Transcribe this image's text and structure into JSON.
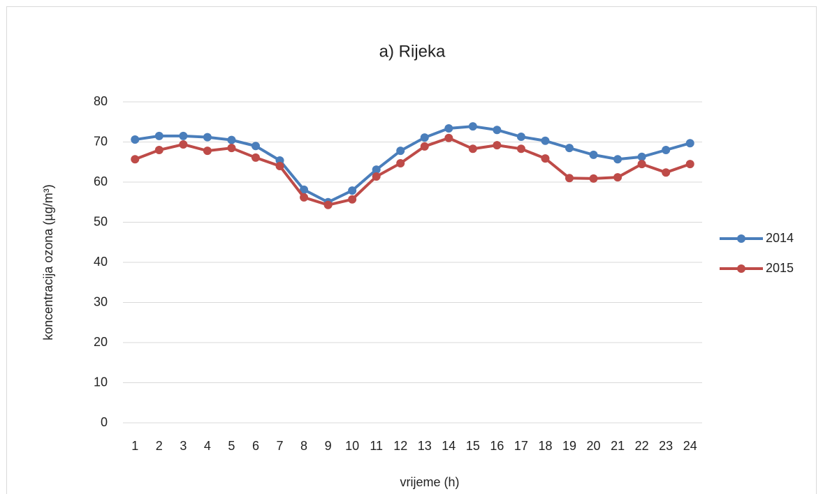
{
  "chart_data": {
    "type": "line",
    "title": "a) Rijeka",
    "xlabel": "vrijeme (h)",
    "ylabel": "koncentracija ozona (µg/m³)",
    "categories": [
      "1",
      "2",
      "3",
      "4",
      "5",
      "6",
      "7",
      "8",
      "9",
      "10",
      "11",
      "12",
      "13",
      "14",
      "15",
      "16",
      "17",
      "18",
      "19",
      "20",
      "21",
      "22",
      "23",
      "24"
    ],
    "series": [
      {
        "name": "2014",
        "color": "#4a7ebb",
        "values": [
          70.6,
          71.5,
          71.5,
          71.2,
          70.5,
          69.0,
          65.4,
          58.1,
          55.0,
          57.9,
          63.1,
          67.8,
          71.1,
          73.4,
          73.9,
          73.0,
          71.3,
          70.3,
          68.5,
          66.8,
          65.7,
          66.3,
          68.0,
          69.7
        ]
      },
      {
        "name": "2015",
        "color": "#be4b48",
        "values": [
          65.7,
          68.0,
          69.4,
          67.8,
          68.5,
          66.1,
          64.0,
          56.2,
          54.3,
          55.7,
          61.4,
          64.7,
          68.9,
          71.0,
          68.3,
          69.2,
          68.3,
          65.9,
          61.0,
          60.9,
          61.2,
          64.5,
          62.4,
          64.5
        ]
      }
    ],
    "ylim": [
      0,
      80
    ],
    "yticks": [
      0,
      10,
      20,
      30,
      40,
      50,
      60,
      70,
      80
    ],
    "grid": true,
    "legend": "right"
  }
}
